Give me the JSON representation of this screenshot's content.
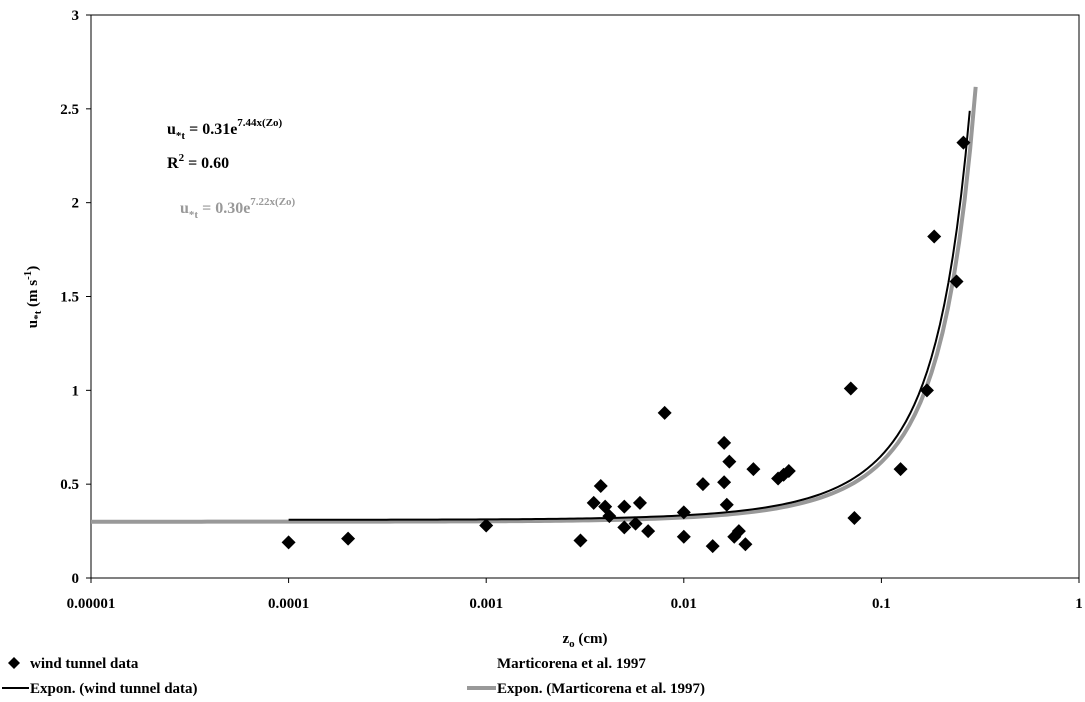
{
  "chart_data": {
    "type": "scatter",
    "xlabel": {
      "main": "z",
      "sub": "o",
      "tail": " (cm)"
    },
    "ylabel": {
      "main": "u",
      "sub": "*t",
      "mid": " (m s",
      "sup": "-1",
      "tail": ")"
    },
    "x_scale": "log",
    "xlim": [
      1e-05,
      1
    ],
    "ylim": [
      0,
      3
    ],
    "x_ticks": [
      {
        "value": 1e-05,
        "label": "0.00001"
      },
      {
        "value": 0.0001,
        "label": "0.0001"
      },
      {
        "value": 0.001,
        "label": "0.001"
      },
      {
        "value": 0.01,
        "label": "0.01"
      },
      {
        "value": 0.1,
        "label": "0.1"
      },
      {
        "value": 1,
        "label": "1"
      }
    ],
    "y_ticks": [
      {
        "value": 0,
        "label": "0"
      },
      {
        "value": 0.5,
        "label": "0.5"
      },
      {
        "value": 1,
        "label": "1"
      },
      {
        "value": 1.5,
        "label": "1.5"
      },
      {
        "value": 2,
        "label": "2"
      },
      {
        "value": 2.5,
        "label": "2.5"
      },
      {
        "value": 3,
        "label": "3"
      }
    ],
    "grid": false,
    "legend_position": "bottom",
    "series": [
      {
        "name": "wind tunnel data",
        "kind": "scatter",
        "marker": "diamond",
        "color": "#000000",
        "points": [
          {
            "x": 0.0001,
            "y": 0.19
          },
          {
            "x": 0.0002,
            "y": 0.21
          },
          {
            "x": 0.001,
            "y": 0.28
          },
          {
            "x": 0.003,
            "y": 0.2
          },
          {
            "x": 0.0035,
            "y": 0.4
          },
          {
            "x": 0.0038,
            "y": 0.49
          },
          {
            "x": 0.004,
            "y": 0.38
          },
          {
            "x": 0.0042,
            "y": 0.33
          },
          {
            "x": 0.005,
            "y": 0.38
          },
          {
            "x": 0.005,
            "y": 0.27
          },
          {
            "x": 0.0057,
            "y": 0.29
          },
          {
            "x": 0.006,
            "y": 0.4
          },
          {
            "x": 0.0066,
            "y": 0.25
          },
          {
            "x": 0.008,
            "y": 0.88
          },
          {
            "x": 0.01,
            "y": 0.35
          },
          {
            "x": 0.01,
            "y": 0.22
          },
          {
            "x": 0.0125,
            "y": 0.5
          },
          {
            "x": 0.014,
            "y": 0.17
          },
          {
            "x": 0.016,
            "y": 0.72
          },
          {
            "x": 0.016,
            "y": 0.51
          },
          {
            "x": 0.0165,
            "y": 0.39
          },
          {
            "x": 0.017,
            "y": 0.62
          },
          {
            "x": 0.018,
            "y": 0.22
          },
          {
            "x": 0.019,
            "y": 0.25
          },
          {
            "x": 0.0205,
            "y": 0.18
          },
          {
            "x": 0.0225,
            "y": 0.58
          },
          {
            "x": 0.03,
            "y": 0.53
          },
          {
            "x": 0.032,
            "y": 0.55
          },
          {
            "x": 0.034,
            "y": 0.57
          },
          {
            "x": 0.07,
            "y": 1.01
          },
          {
            "x": 0.073,
            "y": 0.32
          },
          {
            "x": 0.125,
            "y": 0.58
          },
          {
            "x": 0.17,
            "y": 1.0
          },
          {
            "x": 0.185,
            "y": 1.82
          },
          {
            "x": 0.24,
            "y": 1.58
          },
          {
            "x": 0.26,
            "y": 2.32
          }
        ]
      },
      {
        "name": "Marticorena et al. 1997",
        "kind": "scatter",
        "marker": "none",
        "color": "#ffffff",
        "points": []
      },
      {
        "name": "Expon. (wind tunnel data)",
        "kind": "line",
        "color": "#000000",
        "a": 0.31,
        "b": 7.44,
        "x_range": [
          0.0001,
          0.28
        ]
      },
      {
        "name": "Expon. (Marticorena et al. 1997)",
        "kind": "line",
        "color": "#999999",
        "a": 0.3,
        "b": 7.22,
        "x_range": [
          1e-05,
          0.3
        ]
      }
    ],
    "annotations": {
      "eq1": {
        "u": "u",
        "sub": "*t",
        "mid": " = 0.31e",
        "sup": "7.44x(Zo)",
        "color": "#000000"
      },
      "r2": {
        "r": "R",
        "sup": "2",
        "tail": " = 0.60",
        "color": "#000000"
      },
      "eq2": {
        "u": "u",
        "sub": "*t",
        "mid": " = 0.30e",
        "sup": "7.22x(Zo)",
        "color": "#999999"
      }
    }
  }
}
